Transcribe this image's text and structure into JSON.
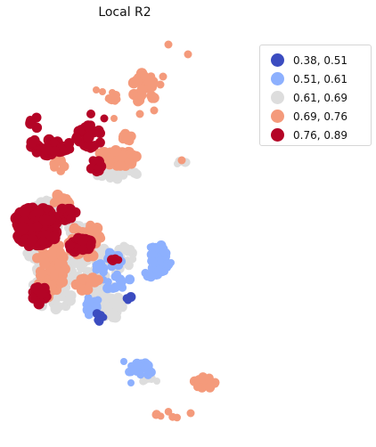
{
  "title": "Local R2",
  "legend": {
    "items": [
      {
        "label": "0.38, 0.51",
        "color": "#3b4cc0"
      },
      {
        "label": "0.51, 0.61",
        "color": "#8db0fe"
      },
      {
        "label": "0.61, 0.69",
        "color": "#dddddd"
      },
      {
        "label": "0.69, 0.76",
        "color": "#f49a7b"
      },
      {
        "label": "0.76, 0.89",
        "color": "#b40426"
      }
    ]
  },
  "map_layers": {
    "class_order": [
      2,
      1,
      3,
      4,
      0
    ]
  }
}
